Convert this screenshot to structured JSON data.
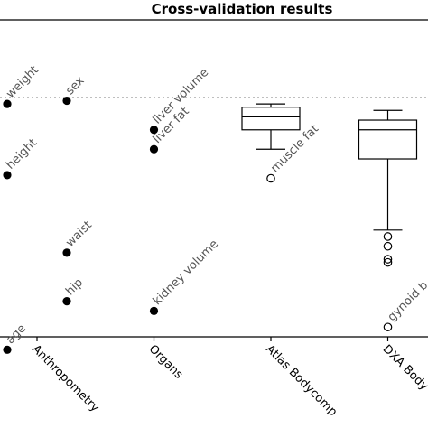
{
  "chart_data": {
    "type": "scatter",
    "title": "Cross-validation results",
    "categories": [
      "Anthropometry",
      "Organs",
      "Atlas Bodycomp",
      "DXA Body"
    ],
    "reference_line": {
      "y": 1.0,
      "style": "dotted",
      "color": "#aaaaaa"
    },
    "ylim": [
      0.26,
      1.24
    ],
    "points": [
      {
        "category": "Anthropometry",
        "offset": -0.25,
        "y": 0.98,
        "label": "weight"
      },
      {
        "category": "Anthropometry",
        "offset": 0.25,
        "y": 0.99,
        "label": "sex"
      },
      {
        "category": "Anthropometry",
        "offset": -0.25,
        "y": 0.76,
        "label": "height"
      },
      {
        "category": "Anthropometry",
        "offset": 0.25,
        "y": 0.52,
        "label": "waist"
      },
      {
        "category": "Anthropometry",
        "offset": 0.25,
        "y": 0.37,
        "label": "hip"
      },
      {
        "category": "Anthropometry",
        "offset": -0.25,
        "y": 0.22,
        "label": "age"
      },
      {
        "category": "Organs",
        "offset": 0,
        "y": 0.9,
        "label": "liver volume"
      },
      {
        "category": "Organs",
        "offset": 0,
        "y": 0.84,
        "label": "liver fat"
      },
      {
        "category": "Organs",
        "offset": 0,
        "y": 0.34,
        "label": "kidney volume"
      }
    ],
    "boxes": [
      {
        "category": "Atlas Bodycomp",
        "whisker_low": 0.84,
        "q1": 0.9,
        "median": 0.94,
        "q3": 0.97,
        "whisker_high": 0.98,
        "outliers": [
          {
            "y": 0.75,
            "label": "muscle fat"
          }
        ]
      },
      {
        "category": "DXA Body",
        "whisker_low": 0.59,
        "q1": 0.81,
        "median": 0.9,
        "q3": 0.93,
        "whisker_high": 0.96,
        "outliers": [
          {
            "y": 0.57
          },
          {
            "y": 0.54
          },
          {
            "y": 0.5
          },
          {
            "y": 0.49
          },
          {
            "y": 0.29,
            "label": "gynoid b"
          }
        ]
      }
    ]
  }
}
